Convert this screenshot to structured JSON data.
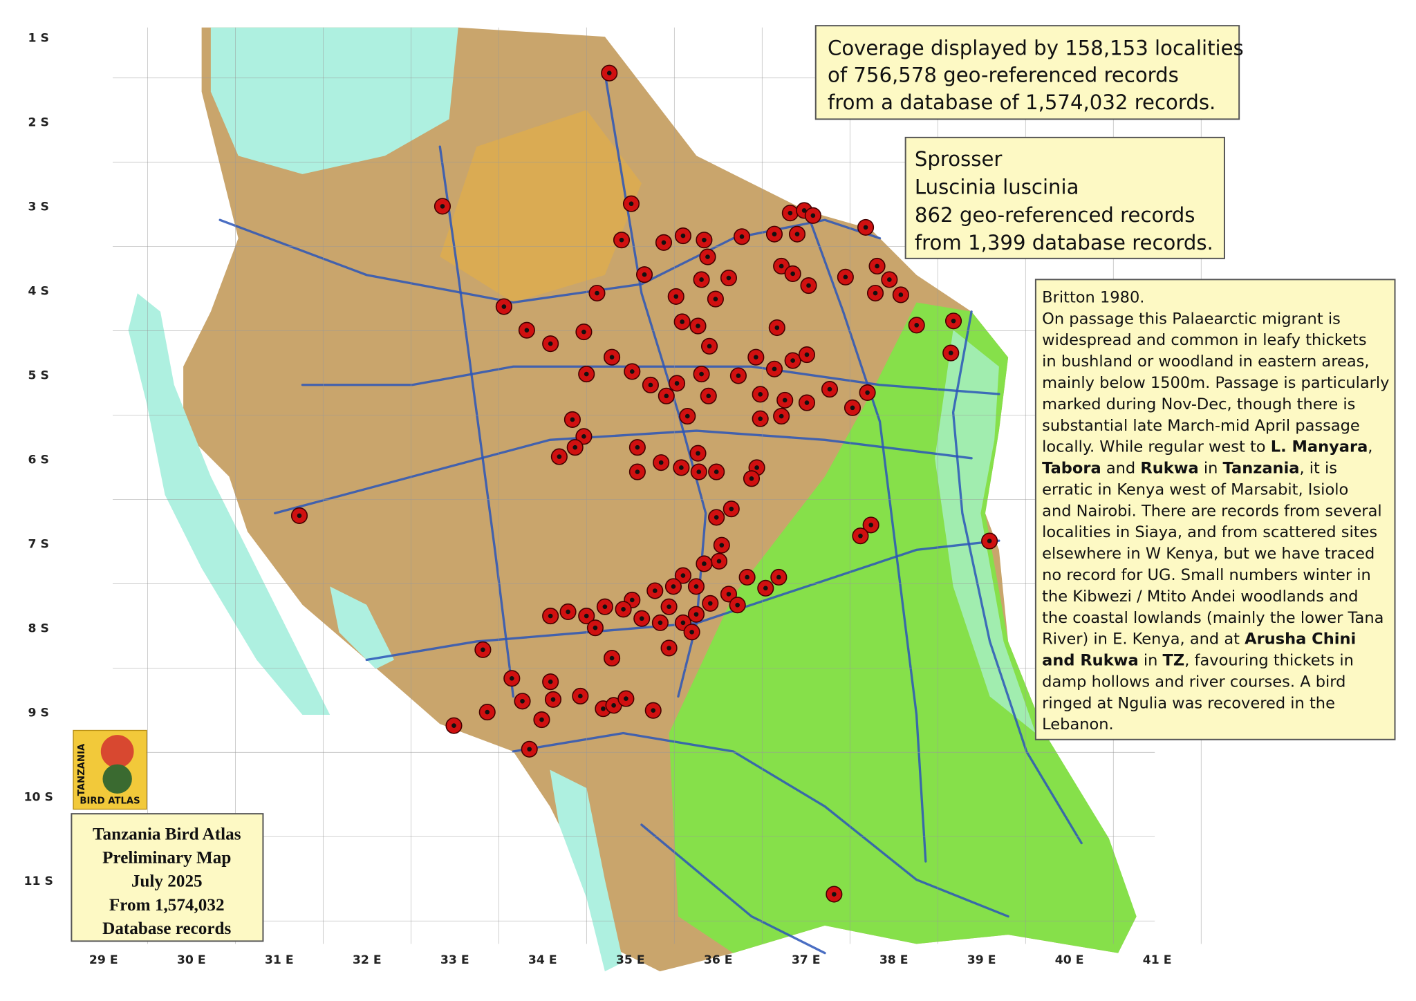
{
  "axes": {
    "longitude": [
      {
        "value": 29,
        "label": "29 E"
      },
      {
        "value": 30,
        "label": "30 E"
      },
      {
        "value": 31,
        "label": "31 E"
      },
      {
        "value": 32,
        "label": "32 E"
      },
      {
        "value": 33,
        "label": "33 E"
      },
      {
        "value": 34,
        "label": "34 E"
      },
      {
        "value": 35,
        "label": "35 E"
      },
      {
        "value": 36,
        "label": "36 E"
      },
      {
        "value": 37,
        "label": "37 E"
      },
      {
        "value": 38,
        "label": "38 E"
      },
      {
        "value": 39,
        "label": "39 E"
      },
      {
        "value": 40,
        "label": "40 E"
      },
      {
        "value": 41,
        "label": "41 E"
      }
    ],
    "latitude": [
      {
        "value": 1,
        "label": "1 S"
      },
      {
        "value": 2,
        "label": "2 S"
      },
      {
        "value": 3,
        "label": "3 S"
      },
      {
        "value": 4,
        "label": "4 S"
      },
      {
        "value": 5,
        "label": "5 S"
      },
      {
        "value": 6,
        "label": "6 S"
      },
      {
        "value": 7,
        "label": "7 S"
      },
      {
        "value": 8,
        "label": "8 S"
      },
      {
        "value": 9,
        "label": "9 S"
      },
      {
        "value": 10,
        "label": "10 S"
      },
      {
        "value": 11,
        "label": "11 S"
      }
    ]
  },
  "coverage_box": [
    "Coverage displayed by 158,153 localities",
    "of 756,578 geo-referenced records",
    "from a database of 1,574,032 records."
  ],
  "species_box": [
    "Sprosser",
    "Luscinia luscinia",
    "862 geo-referenced records",
    "from 1,399 database records."
  ],
  "notes_box": {
    "source": "Britton 1980.",
    "lines": [
      [
        "On passage this Palaearctic migrant is"
      ],
      [
        "widespread and common in leafy thickets"
      ],
      [
        "in bushland or woodland in eastern areas,"
      ],
      [
        "mainly below 1500m. Passage is particularly"
      ],
      [
        "marked during Nov-Dec, though there is"
      ],
      [
        "substantial late March-mid April passage"
      ],
      [
        "locally. While regular west to ",
        {
          "text": "L. Manyara",
          "bold": true
        },
        ","
      ],
      [
        {
          "text": "Tabora",
          "bold": true
        },
        " and ",
        {
          "text": "Rukwa",
          "bold": true
        },
        " in ",
        {
          "text": "Tanzania",
          "bold": true
        },
        ", it is"
      ],
      [
        "erratic in Kenya west of Marsabit, Isiolo"
      ],
      [
        "and Nairobi. There are records from several"
      ],
      [
        "localities in Siaya, and from scattered sites"
      ],
      [
        "elsewhere in W Kenya, but we have traced"
      ],
      [
        "no record for UG. Small numbers winter in"
      ],
      [
        "the Kibwezi / Mtito Andei woodlands and"
      ],
      [
        "the coastal lowlands (mainly the lower Tana"
      ],
      [
        "River) in E. Kenya, and at ",
        {
          "text": "Arusha Chini",
          "bold": true
        }
      ],
      [
        {
          "text": "and Rukwa",
          "bold": true
        },
        " in ",
        {
          "text": "TZ",
          "bold": true
        },
        ", favouring thickets in"
      ],
      [
        "damp hollows and river courses. A bird"
      ],
      [
        "ringed at Ngulia was recovered in the"
      ],
      [
        "Lebanon."
      ]
    ]
  },
  "logo": {
    "top": "TANZANIA",
    "bottom": "BIRD ATLAS"
  },
  "atlas_box": [
    "Tanzania Bird Atlas",
    "Preliminary Map",
    "July 2025",
    "From 1,574,032",
    "Database records"
  ],
  "record_color": "#d01010",
  "records": [
    [
      34.76,
      1.41
    ],
    [
      32.86,
      2.99
    ],
    [
      35.01,
      2.96
    ],
    [
      34.9,
      3.39
    ],
    [
      35.38,
      3.42
    ],
    [
      35.6,
      3.34
    ],
    [
      35.84,
      3.39
    ],
    [
      35.88,
      3.59
    ],
    [
      36.27,
      3.35
    ],
    [
      36.64,
      3.32
    ],
    [
      36.82,
      3.07
    ],
    [
      36.98,
      3.04
    ],
    [
      37.08,
      3.1
    ],
    [
      36.9,
      3.32
    ],
    [
      37.68,
      3.24
    ],
    [
      35.81,
      3.86
    ],
    [
      36.12,
      3.84
    ],
    [
      35.16,
      3.8
    ],
    [
      36.72,
      3.7
    ],
    [
      36.85,
      3.79
    ],
    [
      37.03,
      3.93
    ],
    [
      37.45,
      3.83
    ],
    [
      37.81,
      3.7
    ],
    [
      37.95,
      3.86
    ],
    [
      38.08,
      4.04
    ],
    [
      37.79,
      4.02
    ],
    [
      38.68,
      4.35
    ],
    [
      38.26,
      4.4
    ],
    [
      38.65,
      4.73
    ],
    [
      33.56,
      4.18
    ],
    [
      33.82,
      4.46
    ],
    [
      34.09,
      4.62
    ],
    [
      34.62,
      4.02
    ],
    [
      34.47,
      4.48
    ],
    [
      35.52,
      4.06
    ],
    [
      35.97,
      4.09
    ],
    [
      35.59,
      4.36
    ],
    [
      35.77,
      4.41
    ],
    [
      35.9,
      4.65
    ],
    [
      36.67,
      4.43
    ],
    [
      36.43,
      4.78
    ],
    [
      36.64,
      4.92
    ],
    [
      36.85,
      4.82
    ],
    [
      37.01,
      4.75
    ],
    [
      34.79,
      4.78
    ],
    [
      34.5,
      4.98
    ],
    [
      35.02,
      4.95
    ],
    [
      35.23,
      5.11
    ],
    [
      35.53,
      5.09
    ],
    [
      35.81,
      4.98
    ],
    [
      36.23,
      5.0
    ],
    [
      36.48,
      5.22
    ],
    [
      36.76,
      5.29
    ],
    [
      37.01,
      5.32
    ],
    [
      37.27,
      5.16
    ],
    [
      37.7,
      5.2
    ],
    [
      37.53,
      5.38
    ],
    [
      35.41,
      5.24
    ],
    [
      35.89,
      5.24
    ],
    [
      35.65,
      5.48
    ],
    [
      36.48,
      5.51
    ],
    [
      36.72,
      5.48
    ],
    [
      34.34,
      5.52
    ],
    [
      34.47,
      5.72
    ],
    [
      34.37,
      5.85
    ],
    [
      34.19,
      5.96
    ],
    [
      35.08,
      5.85
    ],
    [
      35.08,
      6.14
    ],
    [
      35.35,
      6.03
    ],
    [
      35.58,
      6.09
    ],
    [
      35.77,
      5.92
    ],
    [
      35.98,
      6.14
    ],
    [
      36.44,
      6.09
    ],
    [
      36.38,
      6.22
    ],
    [
      35.78,
      6.14
    ],
    [
      36.15,
      6.58
    ],
    [
      35.98,
      6.68
    ],
    [
      31.23,
      6.66
    ],
    [
      37.74,
      6.77
    ],
    [
      37.62,
      6.9
    ],
    [
      39.09,
      6.96
    ],
    [
      36.04,
      7.01
    ],
    [
      36.01,
      7.2
    ],
    [
      35.84,
      7.23
    ],
    [
      35.6,
      7.37
    ],
    [
      36.33,
      7.39
    ],
    [
      36.69,
      7.39
    ],
    [
      36.54,
      7.52
    ],
    [
      36.12,
      7.59
    ],
    [
      35.75,
      7.5
    ],
    [
      35.49,
      7.5
    ],
    [
      35.28,
      7.55
    ],
    [
      35.02,
      7.66
    ],
    [
      34.92,
      7.77
    ],
    [
      34.71,
      7.74
    ],
    [
      34.5,
      7.85
    ],
    [
      34.29,
      7.8
    ],
    [
      34.09,
      7.85
    ],
    [
      34.6,
      7.99
    ],
    [
      35.13,
      7.88
    ],
    [
      35.44,
      7.74
    ],
    [
      35.75,
      7.83
    ],
    [
      35.91,
      7.7
    ],
    [
      36.22,
      7.72
    ],
    [
      35.6,
      7.93
    ],
    [
      35.7,
      8.04
    ],
    [
      35.34,
      7.93
    ],
    [
      35.44,
      8.23
    ],
    [
      34.79,
      8.35
    ],
    [
      33.32,
      8.25
    ],
    [
      33.65,
      8.59
    ],
    [
      34.09,
      8.63
    ],
    [
      33.77,
      8.86
    ],
    [
      34.12,
      8.84
    ],
    [
      34.43,
      8.8
    ],
    [
      33.37,
      8.99
    ],
    [
      33.99,
      9.08
    ],
    [
      32.99,
      9.15
    ],
    [
      33.85,
      9.43
    ],
    [
      34.69,
      8.95
    ],
    [
      34.81,
      8.91
    ],
    [
      34.95,
      8.83
    ],
    [
      35.26,
      8.97
    ],
    [
      37.32,
      11.15
    ]
  ]
}
